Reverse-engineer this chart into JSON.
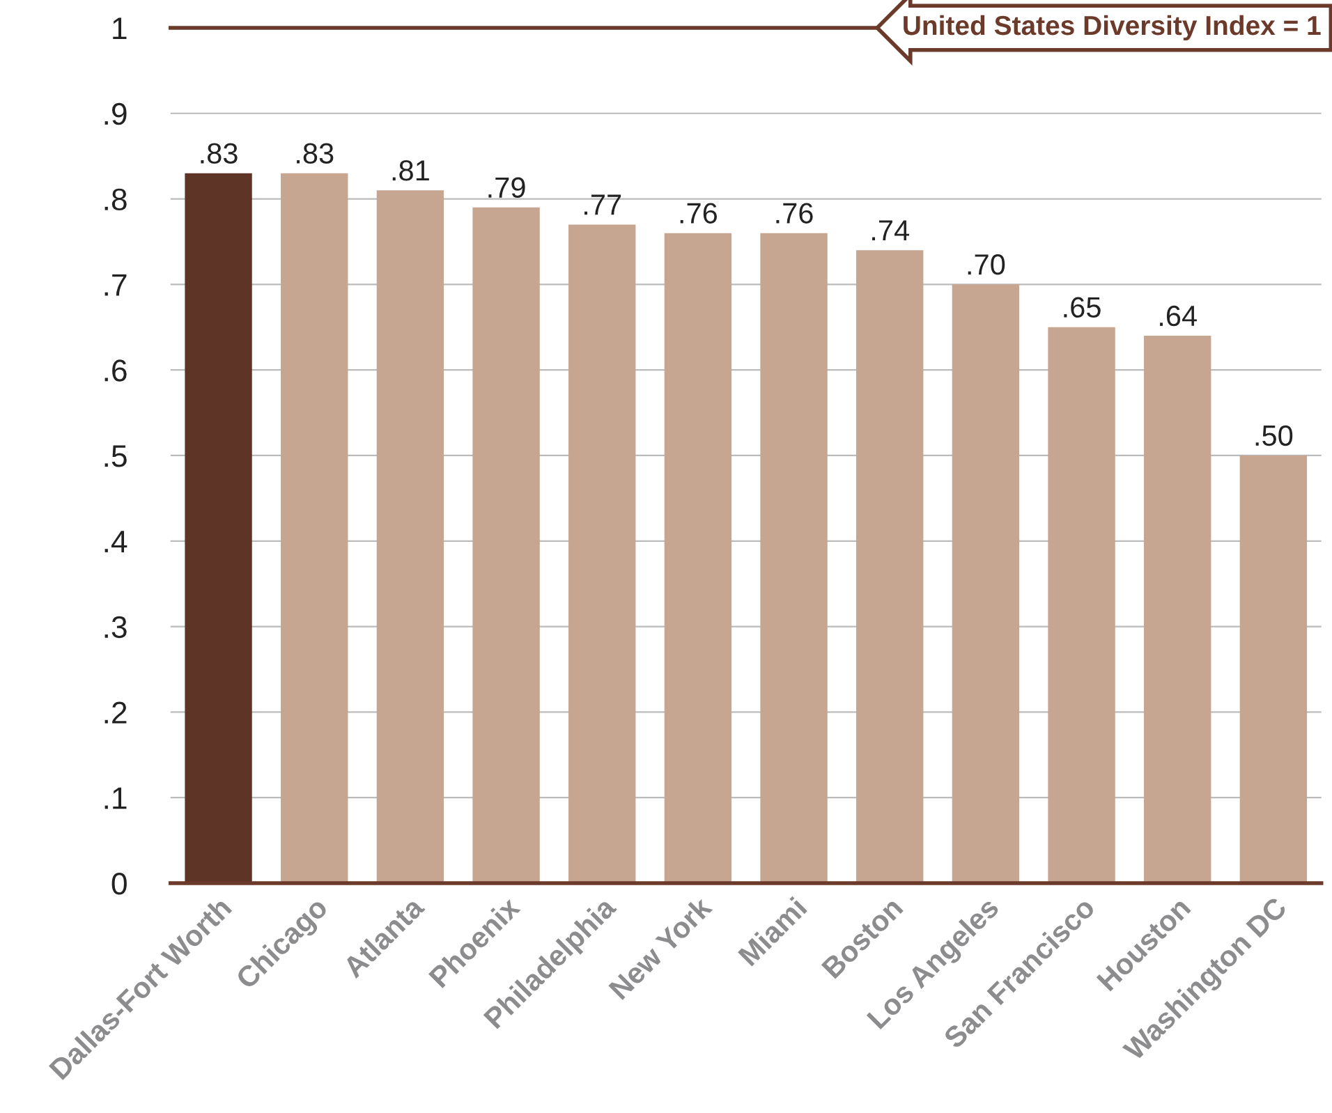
{
  "chart_data": {
    "type": "bar",
    "categories": [
      "Dallas-Fort Worth",
      "Chicago",
      "Atlanta",
      "Phoenix",
      "Philadelphia",
      "New York",
      "Miami",
      "Boston",
      "Los Angeles",
      "San Francisco",
      "Houston",
      "Washington DC"
    ],
    "values": [
      0.83,
      0.83,
      0.81,
      0.79,
      0.77,
      0.76,
      0.76,
      0.74,
      0.7,
      0.65,
      0.64,
      0.5
    ],
    "value_labels": [
      ".83",
      ".83",
      ".81",
      ".79",
      ".77",
      ".76",
      ".76",
      ".74",
      ".70",
      ".65",
      ".64",
      ".50"
    ],
    "colors": [
      "#5e3426",
      "#c6a591",
      "#c6a591",
      "#c6a591",
      "#c6a591",
      "#c6a591",
      "#c6a591",
      "#c6a591",
      "#c6a591",
      "#c6a591",
      "#c6a591",
      "#c6a591"
    ],
    "ylim": [
      0,
      1
    ],
    "yticks": [
      0,
      {
        "value": 0.1,
        "label": ".1"
      },
      {
        "value": 0.2,
        "label": ".2"
      },
      {
        "value": 0.3,
        "label": ".3"
      },
      {
        "value": 0.4,
        "label": ".4"
      },
      {
        "value": 0.5,
        "label": ".5"
      },
      {
        "value": 0.6,
        "label": ".6"
      },
      {
        "value": 0.7,
        "label": ".7"
      },
      {
        "value": 0.8,
        "label": ".8"
      },
      {
        "value": 0.9,
        "label": ".9"
      },
      1
    ],
    "grid": "y",
    "ref_lines": [
      {
        "axis": "y",
        "value": 1,
        "label": "United States Diversity Index = 1",
        "color": "#6b3a2a"
      }
    ]
  }
}
